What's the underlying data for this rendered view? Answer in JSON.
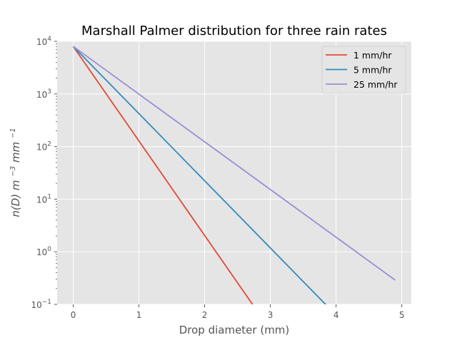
{
  "chart_data": {
    "type": "line",
    "title": "Marshall Palmer distribution for three rain rates",
    "xlabel": "Drop diameter (mm)",
    "ylabel": {
      "base": "n(D) m",
      "exp1": "−3",
      "mid": " mm",
      "exp2": "−1"
    },
    "xlim": [
      -0.245,
      5.145
    ],
    "ylim": [
      0.1,
      10000
    ],
    "yscale": "log",
    "xticks": [
      {
        "value": 0,
        "label": "0"
      },
      {
        "value": 1,
        "label": "1"
      },
      {
        "value": 2,
        "label": "2"
      },
      {
        "value": 3,
        "label": "3"
      },
      {
        "value": 4,
        "label": "4"
      },
      {
        "value": 5,
        "label": "5"
      }
    ],
    "yticks": [
      {
        "value": 0.1,
        "base": "10",
        "exp": "−1"
      },
      {
        "value": 1,
        "base": "10",
        "exp": "0"
      },
      {
        "value": 10,
        "base": "10",
        "exp": "1"
      },
      {
        "value": 100,
        "base": "10",
        "exp": "2"
      },
      {
        "value": 1000,
        "base": "10",
        "exp": "3"
      },
      {
        "value": 10000,
        "base": "10",
        "exp": "4"
      }
    ],
    "grid": true,
    "legend_position": "top-right",
    "series": [
      {
        "name": "1 mm/hr",
        "color": "#E24A33",
        "x": [
          0,
          2.75
        ],
        "y": [
          8000,
          0.0917
        ]
      },
      {
        "name": "5 mm/hr",
        "color": "#348ABD",
        "x": [
          0,
          3.85
        ],
        "y": [
          8000,
          0.0971
        ]
      },
      {
        "name": "25 mm/hr",
        "color": "#988ED5",
        "x": [
          0,
          4.9
        ],
        "y": [
          8000,
          0.289
        ]
      }
    ]
  },
  "colors": {
    "axes_background": "#E5E5E5",
    "grid": "#FFFFFF",
    "text": "#555555",
    "title": "#000000"
  }
}
